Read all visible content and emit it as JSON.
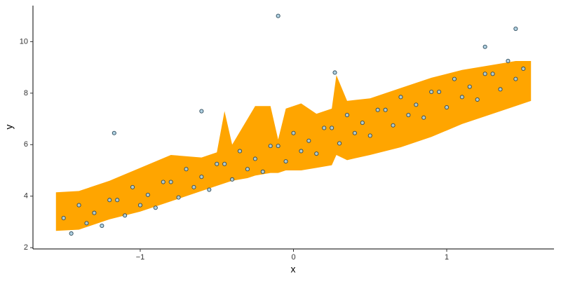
{
  "chart_data": {
    "type": "scatter",
    "xlabel": "x",
    "ylabel": "y",
    "xlim": [
      -1.7,
      1.7
    ],
    "ylim": [
      1.95,
      11.4
    ],
    "xticks": [
      {
        "value": -1,
        "label": "−1"
      },
      0,
      1
    ],
    "yticks": [
      2,
      4,
      6,
      8,
      10
    ],
    "color": "#a9cde0",
    "edge_color": "#2d4a5a",
    "band": {
      "color": "#ffa500",
      "x": [
        -1.55,
        -1.4,
        -1.2,
        -1.0,
        -0.8,
        -0.6,
        -0.5,
        -0.45,
        -0.4,
        -0.3,
        -0.25,
        -0.15,
        -0.1,
        -0.05,
        0.05,
        0.15,
        0.25,
        0.28,
        0.35,
        0.5,
        0.7,
        0.9,
        1.1,
        1.3,
        1.45,
        1.55
      ],
      "lower": [
        2.65,
        2.7,
        3.1,
        3.4,
        3.8,
        4.2,
        4.4,
        4.5,
        4.6,
        4.7,
        4.8,
        4.9,
        4.9,
        5.0,
        5.0,
        5.1,
        5.2,
        5.6,
        5.4,
        5.6,
        5.9,
        6.3,
        6.8,
        7.2,
        7.5,
        7.7
      ],
      "upper": [
        4.15,
        4.2,
        4.6,
        5.1,
        5.6,
        5.5,
        5.7,
        7.3,
        6.0,
        7.0,
        7.5,
        7.5,
        6.2,
        7.4,
        7.6,
        7.2,
        7.4,
        8.7,
        7.7,
        7.8,
        8.2,
        8.6,
        8.9,
        9.1,
        9.25,
        9.25
      ]
    },
    "x": [
      -1.5,
      -1.45,
      -1.4,
      -1.35,
      -1.3,
      -1.25,
      -1.2,
      -1.15,
      -1.1,
      -1.05,
      -1.0,
      -0.95,
      -0.9,
      -0.85,
      -0.8,
      -0.75,
      -0.7,
      -0.65,
      -0.6,
      -0.55,
      -0.5,
      -0.45,
      -0.4,
      -0.35,
      -0.3,
      -0.25,
      -0.2,
      -0.15,
      -0.1,
      -0.05,
      0,
      0.05,
      0.1,
      0.15,
      0.2,
      0.25,
      0.3,
      0.35,
      0.4,
      0.45,
      0.5,
      0.55,
      0.6,
      0.65,
      0.7,
      0.75,
      0.8,
      0.85,
      0.9,
      0.95,
      1.0,
      1.05,
      1.1,
      1.15,
      1.2,
      1.25,
      1.3,
      1.35,
      1.4,
      1.45,
      1.5,
      -0.1,
      -1.17,
      1.45,
      0.27,
      -0.6,
      1.25
    ],
    "values": [
      3.15,
      2.55,
      3.65,
      2.95,
      3.35,
      2.85,
      3.85,
      3.85,
      3.25,
      4.35,
      3.65,
      4.05,
      3.55,
      4.55,
      4.55,
      3.95,
      5.05,
      4.35,
      4.75,
      4.25,
      5.25,
      5.25,
      4.65,
      5.75,
      5.05,
      5.45,
      4.95,
      5.95,
      5.95,
      5.35,
      6.45,
      5.75,
      6.15,
      5.65,
      6.65,
      6.65,
      6.05,
      7.15,
      6.45,
      6.85,
      6.35,
      7.35,
      7.35,
      6.75,
      7.85,
      7.15,
      7.55,
      7.05,
      8.05,
      8.05,
      7.45,
      8.55,
      7.85,
      8.25,
      7.75,
      8.75,
      8.75,
      8.15,
      9.25,
      8.55,
      8.95,
      11.0,
      6.45,
      10.5,
      8.8,
      7.3,
      9.8
    ]
  }
}
